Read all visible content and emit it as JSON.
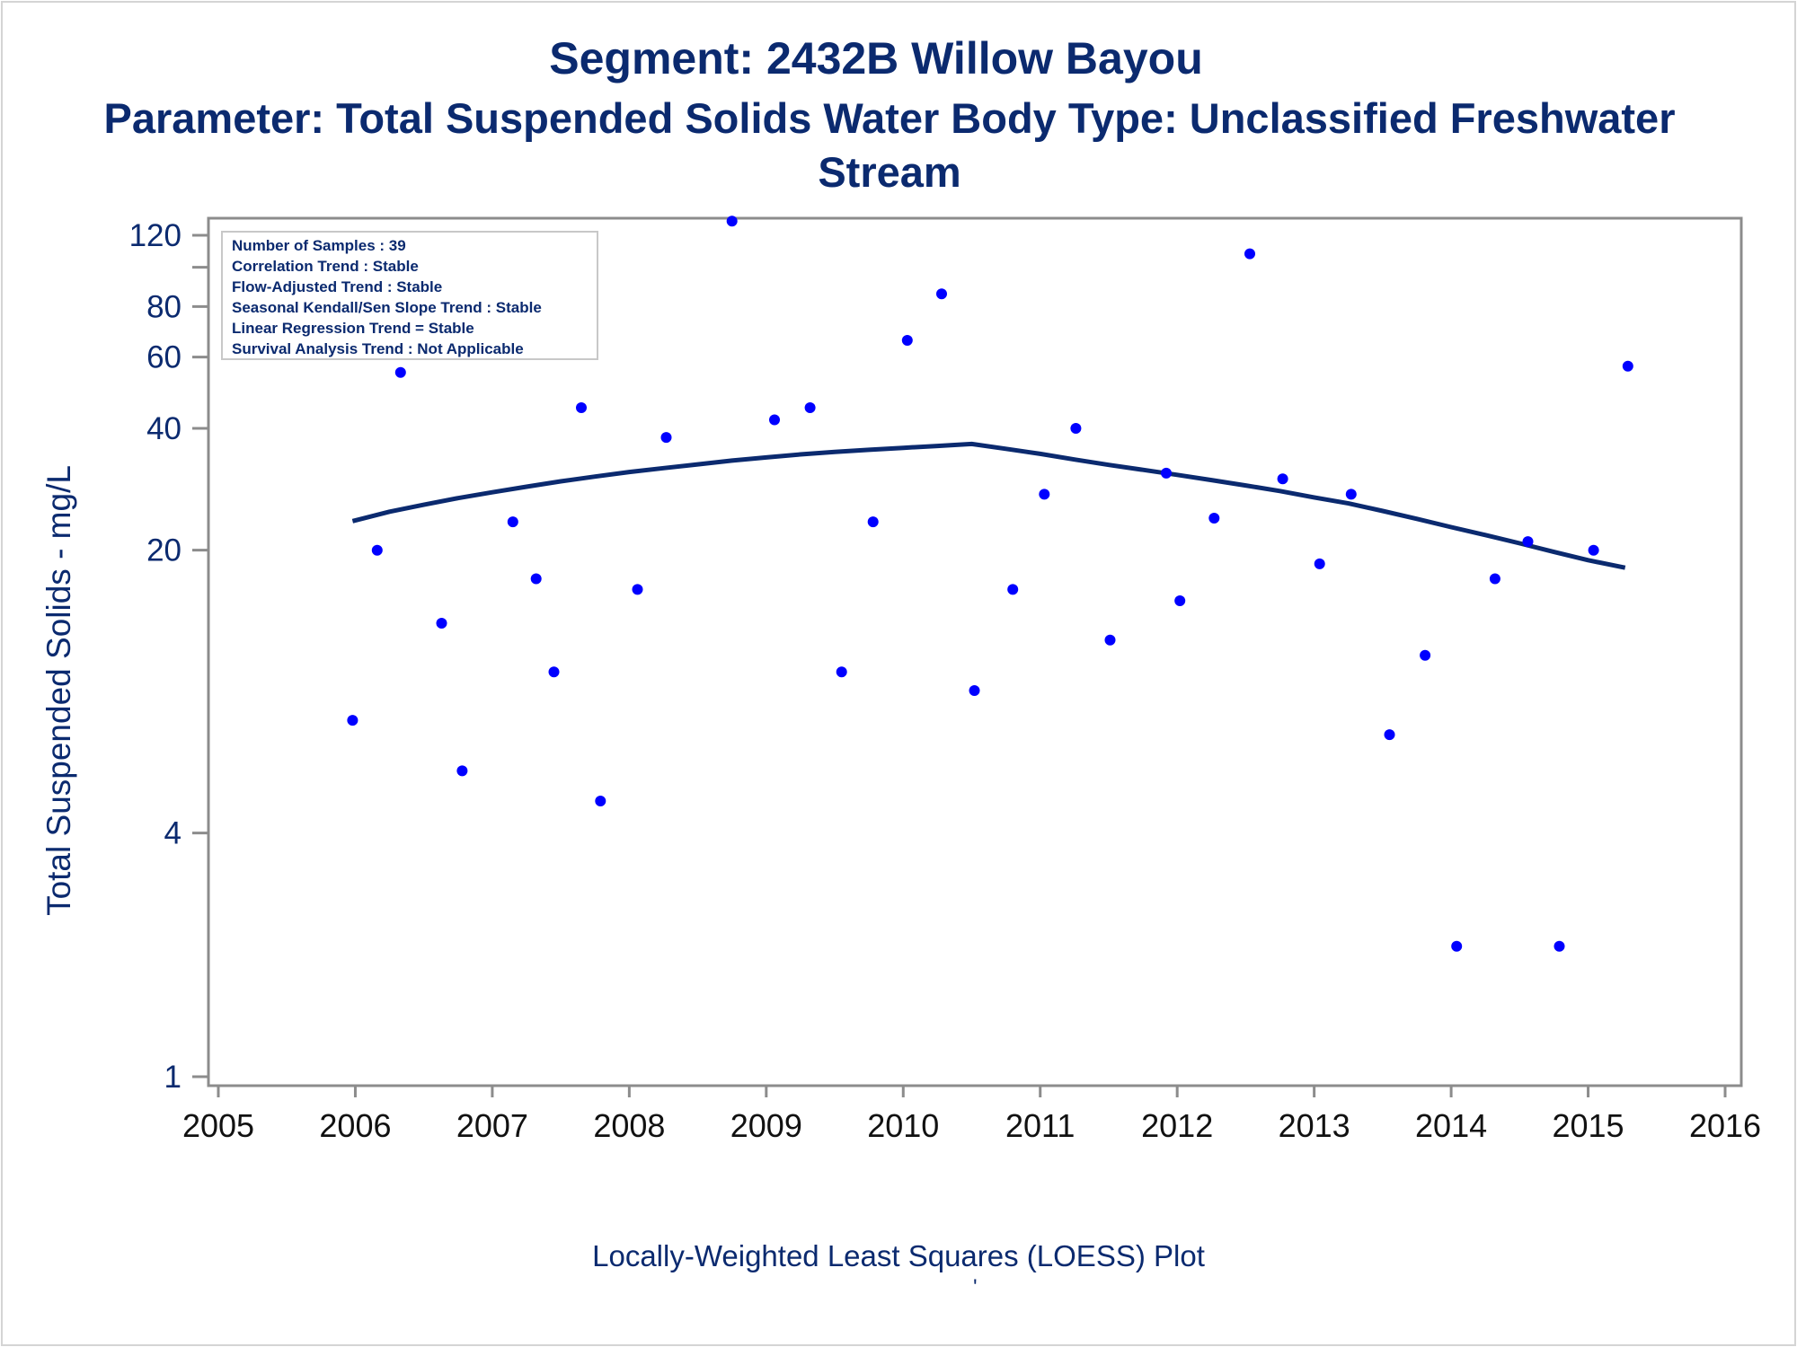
{
  "titles": {
    "line1": "Segment: 2432B  Willow Bayou",
    "line2": "Parameter: Total Suspended Solids   Water Body Type: Unclassified Freshwater",
    "line3": "Stream"
  },
  "footnote": "Locally-Weighted Least Squares (LOESS) Plot",
  "footnote_mark": "'",
  "colors": {
    "text": "#0b2a6f",
    "points": "#0000ff",
    "loess": "#0b2a6f",
    "axis": "#8c8c8c"
  },
  "chart_data": {
    "type": "scatter",
    "ylabel": "Total Suspended Solids - mg/L",
    "xlabel": "",
    "y_scale": "log",
    "xlim": [
      2005,
      2016
    ],
    "ylim": [
      1,
      140
    ],
    "xticks": [
      2005,
      2006,
      2007,
      2008,
      2009,
      2010,
      2011,
      2012,
      2013,
      2014,
      2015,
      2016
    ],
    "yticks": [
      1,
      4,
      20,
      40,
      60,
      80,
      120
    ],
    "ytick_minor": [
      100
    ],
    "stats_box": {
      "placement": "top-left",
      "lines": [
        "Number of Samples : 39",
        "Correlation Trend : Stable",
        "Flow-Adjusted Trend : Stable",
        "Seasonal Kendall/Sen Slope Trend : Stable",
        "Linear Regression Trend = Stable",
        "Survival Analysis Trend : Not Applicable"
      ]
    },
    "points": [
      [
        2005.98,
        7.6
      ],
      [
        2006.16,
        20.0
      ],
      [
        2006.33,
        55.0
      ],
      [
        2006.63,
        13.2
      ],
      [
        2006.78,
        5.7
      ],
      [
        2007.15,
        23.5
      ],
      [
        2007.32,
        17.0
      ],
      [
        2007.45,
        10.0
      ],
      [
        2007.65,
        45.0
      ],
      [
        2007.79,
        4.8
      ],
      [
        2008.06,
        16.0
      ],
      [
        2008.27,
        38.0
      ],
      [
        2008.75,
        130.0
      ],
      [
        2009.06,
        42.0
      ],
      [
        2009.32,
        45.0
      ],
      [
        2009.55,
        10.0
      ],
      [
        2009.78,
        23.5
      ],
      [
        2010.03,
        66.0
      ],
      [
        2010.28,
        86.0
      ],
      [
        2010.52,
        9.0
      ],
      [
        2010.8,
        16.0
      ],
      [
        2011.03,
        27.5
      ],
      [
        2011.26,
        40.0
      ],
      [
        2011.51,
        12.0
      ],
      [
        2011.92,
        31.0
      ],
      [
        2012.02,
        15.0
      ],
      [
        2012.27,
        24.0
      ],
      [
        2012.53,
        108.0
      ],
      [
        2012.77,
        30.0
      ],
      [
        2013.04,
        18.5
      ],
      [
        2013.27,
        27.5
      ],
      [
        2013.55,
        7.0
      ],
      [
        2013.81,
        11.0
      ],
      [
        2014.04,
        2.1
      ],
      [
        2014.32,
        17.0
      ],
      [
        2014.56,
        21.0
      ],
      [
        2014.79,
        2.1
      ],
      [
        2015.04,
        20.0
      ],
      [
        2015.29,
        57.0
      ]
    ],
    "loess": [
      [
        2005.98,
        23.6
      ],
      [
        2006.25,
        24.9
      ],
      [
        2006.5,
        25.9
      ],
      [
        2006.75,
        26.9
      ],
      [
        2007.0,
        27.8
      ],
      [
        2007.25,
        28.7
      ],
      [
        2007.5,
        29.6
      ],
      [
        2007.75,
        30.4
      ],
      [
        2008.0,
        31.2
      ],
      [
        2008.25,
        31.9
      ],
      [
        2008.5,
        32.6
      ],
      [
        2008.75,
        33.3
      ],
      [
        2009.0,
        33.9
      ],
      [
        2009.25,
        34.5
      ],
      [
        2009.5,
        35.0
      ],
      [
        2009.75,
        35.4
      ],
      [
        2010.0,
        35.8
      ],
      [
        2010.25,
        36.2
      ],
      [
        2010.5,
        36.6
      ],
      [
        2010.75,
        35.6
      ],
      [
        2011.0,
        34.6
      ],
      [
        2011.25,
        33.5
      ],
      [
        2011.5,
        32.5
      ],
      [
        2011.75,
        31.6
      ],
      [
        2012.0,
        30.7
      ],
      [
        2012.25,
        29.8
      ],
      [
        2012.5,
        28.9
      ],
      [
        2012.75,
        28.0
      ],
      [
        2013.0,
        27.0
      ],
      [
        2013.25,
        26.1
      ],
      [
        2013.5,
        25.0
      ],
      [
        2013.75,
        23.9
      ],
      [
        2014.0,
        22.8
      ],
      [
        2014.25,
        21.8
      ],
      [
        2014.5,
        20.8
      ],
      [
        2014.75,
        19.8
      ],
      [
        2015.0,
        18.9
      ],
      [
        2015.27,
        18.1
      ]
    ]
  }
}
